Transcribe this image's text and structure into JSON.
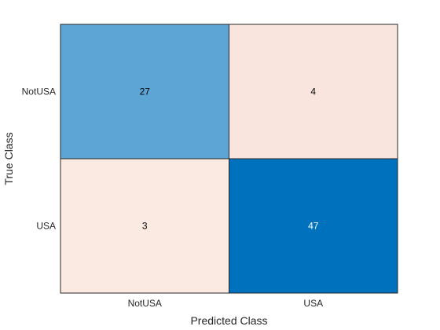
{
  "chart_data": {
    "type": "heatmap",
    "subtype": "confusion-matrix",
    "xlabel": "Predicted Class",
    "ylabel": "True Class",
    "x_categories": [
      "NotUSA",
      "USA"
    ],
    "y_categories": [
      "NotUSA",
      "USA"
    ],
    "values": [
      [
        27,
        4
      ],
      [
        3,
        47
      ]
    ],
    "colors": {
      "diagonal_max": "#0072bd",
      "diagonal_min_blend": "#ffffff",
      "off_diagonal_max": "#d95319",
      "off_diagonal_min_blend": "#ffffff",
      "text_dark": "#000000",
      "text_light": "#ffffff",
      "border": "#262626"
    },
    "grid": true,
    "legend": "none"
  }
}
